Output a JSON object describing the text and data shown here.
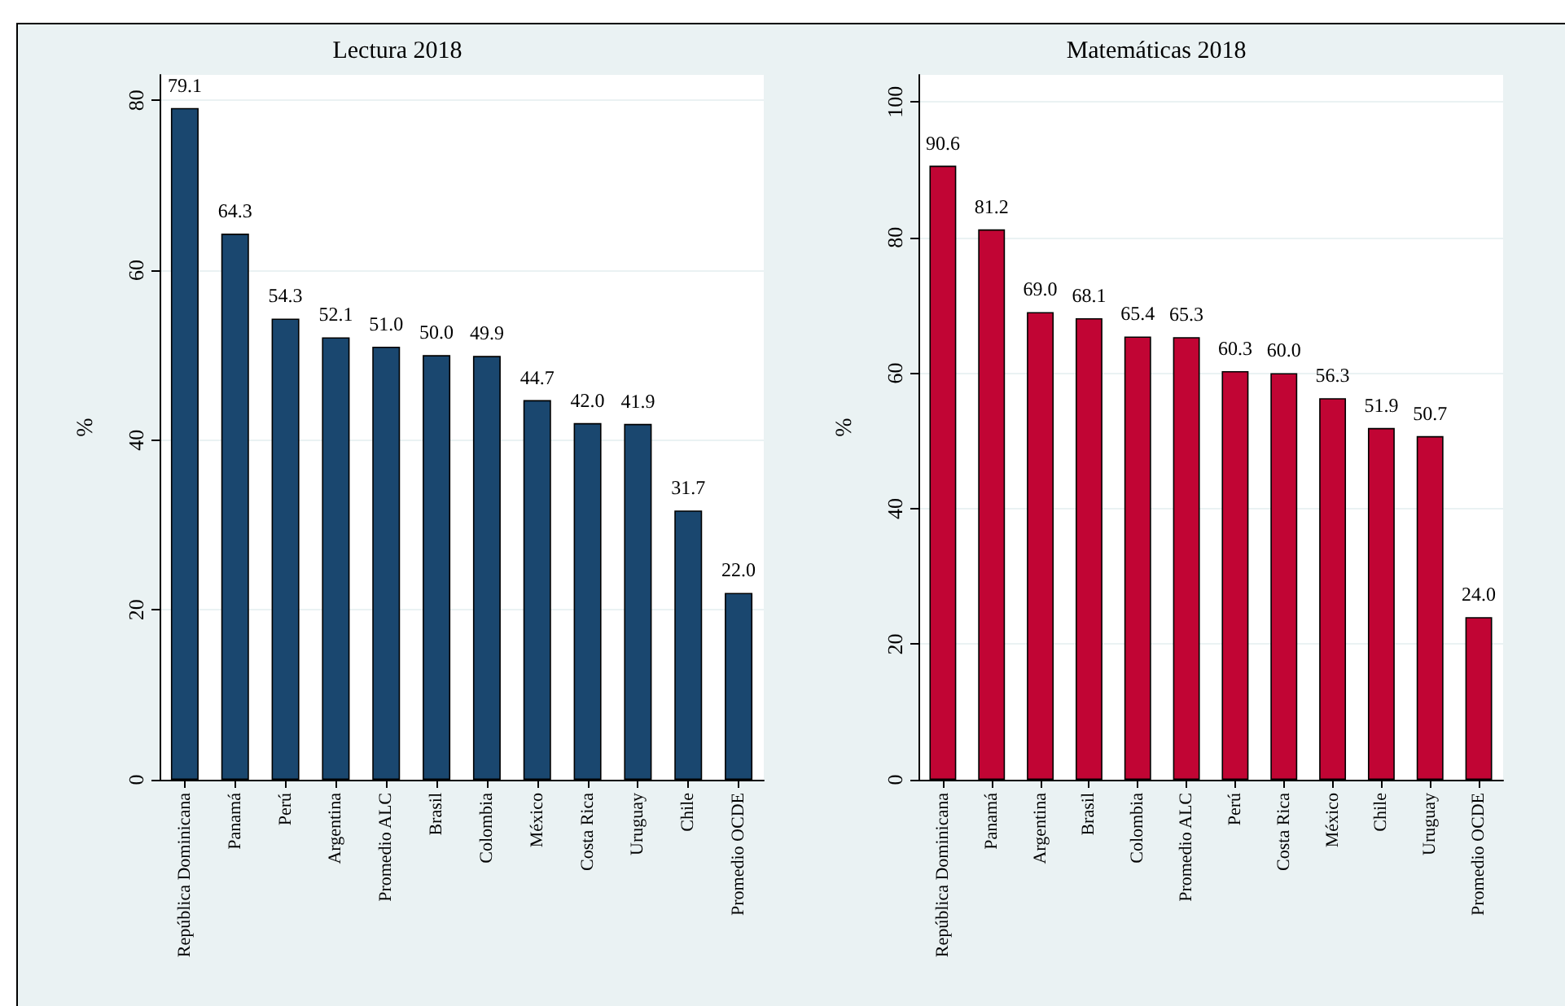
{
  "chart_data": [
    {
      "type": "bar",
      "title": "Lectura 2018",
      "ylabel": "%",
      "categories": [
        "República Dominicana",
        "Panamá",
        "Perú",
        "Argentina",
        "Promedio ALC",
        "Brasil",
        "Colombia",
        "México",
        "Costa Rica",
        "Uruguay",
        "Chile",
        "Promedio OCDE"
      ],
      "values": [
        79.1,
        64.3,
        54.3,
        52.1,
        51.0,
        50.0,
        49.9,
        44.7,
        42.0,
        41.9,
        31.7,
        22.0
      ],
      "value_labels": [
        "79.1",
        "64.3",
        "54.3",
        "52.1",
        "51.0",
        "50.0",
        "49.9",
        "44.7",
        "42.0",
        "41.9",
        "31.7",
        "22.0"
      ],
      "color": "#1a476f",
      "ylim": [
        0,
        83
      ],
      "yticks": [
        0,
        20,
        40,
        60,
        80
      ],
      "grid": "y"
    },
    {
      "type": "bar",
      "title": "Matemáticas 2018",
      "ylabel": "%",
      "categories": [
        "República Dominicana",
        "Panamá",
        "Argentina",
        "Brasil",
        "Colombia",
        "Promedio ALC",
        "Perú",
        "Costa Rica",
        "México",
        "Chile",
        "Uruguay",
        "Promedio OCDE"
      ],
      "values": [
        90.6,
        81.2,
        69.0,
        68.1,
        65.4,
        65.3,
        60.3,
        60.0,
        56.3,
        51.9,
        50.7,
        24.0
      ],
      "value_labels": [
        "90.6",
        "81.2",
        "69.0",
        "68.1",
        "65.4",
        "65.3",
        "60.3",
        "60.0",
        "56.3",
        "51.9",
        "50.7",
        "24.0"
      ],
      "color": "#c10534",
      "ylim": [
        0,
        104
      ],
      "yticks": [
        0,
        20,
        40,
        60,
        80,
        100
      ],
      "grid": "y"
    }
  ]
}
